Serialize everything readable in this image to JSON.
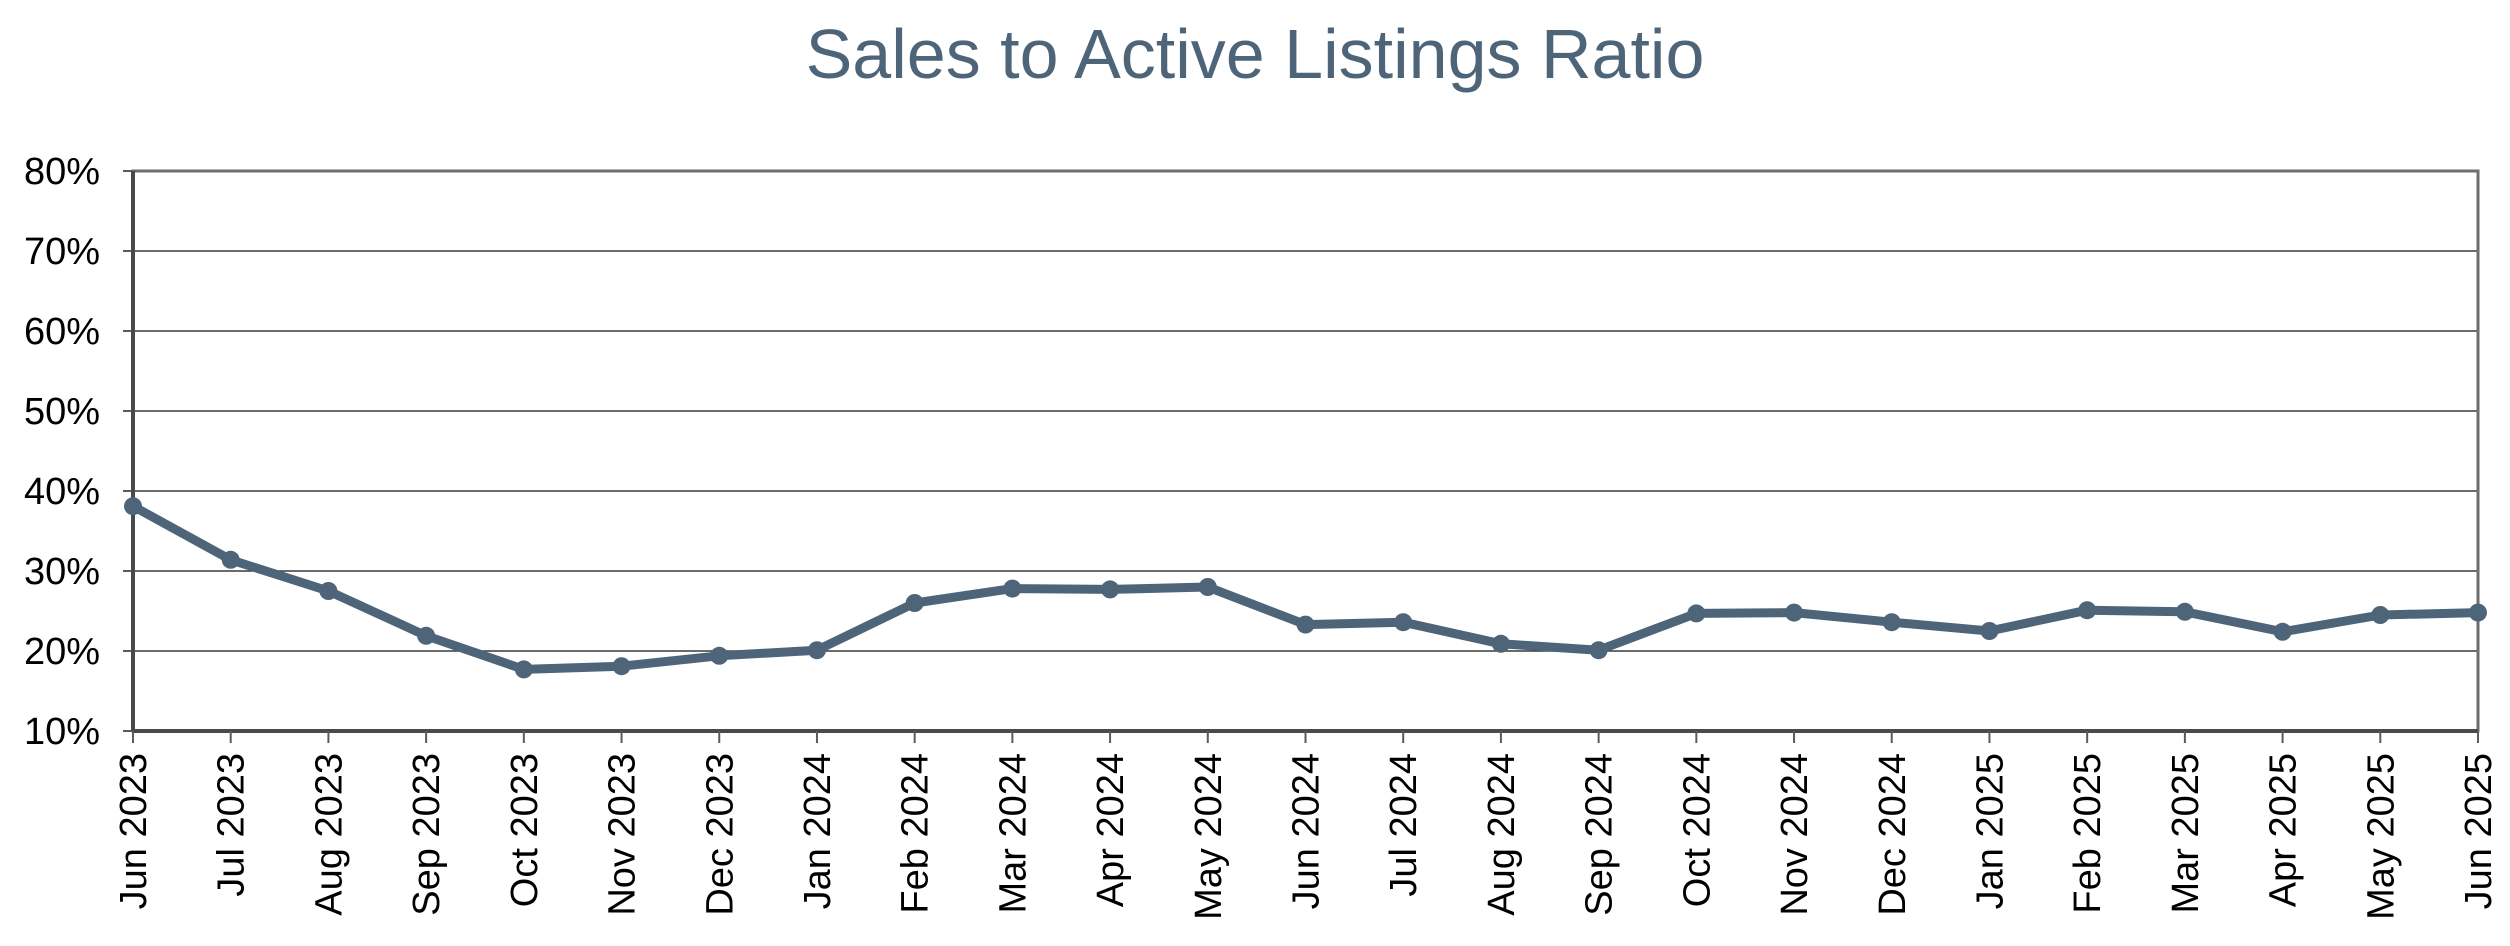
{
  "chart_data": {
    "type": "line",
    "title": "Sales to Active Listings Ratio",
    "xlabel": "",
    "ylabel": "",
    "ylim": [
      0.1,
      0.8
    ],
    "y_ticks": [
      "10%",
      "20%",
      "30%",
      "40%",
      "50%",
      "60%",
      "70%",
      "80%"
    ],
    "grid": true,
    "categories": [
      "Jun 2023",
      "Jul 2023",
      "Aug 2023",
      "Sep 2023",
      "Oct 2023",
      "Nov 2023",
      "Dec 2023",
      "Jan 2024",
      "Feb 2024",
      "Mar 2024",
      "Apr 2024",
      "May 2024",
      "Jun 2024",
      "Jul 2024",
      "Aug 2024",
      "Sep 2024",
      "Oct 2024",
      "Nov 2024",
      "Dec 2024",
      "Jan 2025",
      "Feb 2025",
      "Mar 2025",
      "Apr 2025",
      "May 2025",
      "Jun 2025"
    ],
    "series": [
      {
        "color": "#4e6579",
        "values": [
          0.381,
          0.314,
          0.275,
          0.219,
          0.177,
          0.181,
          0.194,
          0.201,
          0.26,
          0.278,
          0.277,
          0.28,
          0.233,
          0.236,
          0.209,
          0.201,
          0.247,
          0.248,
          0.236,
          0.225,
          0.251,
          0.249,
          0.224,
          0.245,
          0.248
        ]
      }
    ]
  }
}
